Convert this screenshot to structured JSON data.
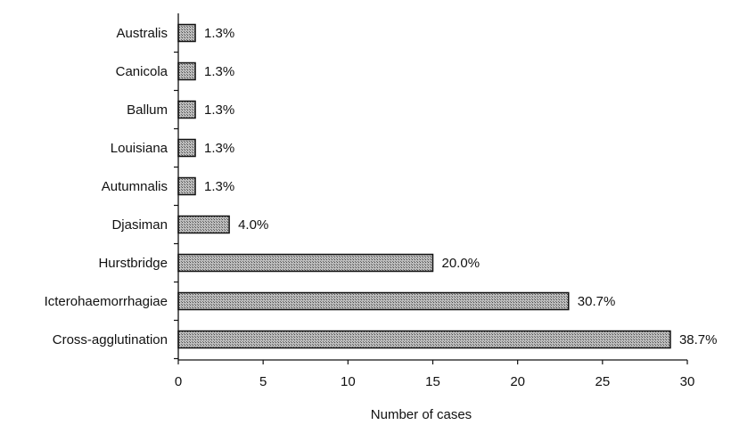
{
  "chart_data": {
    "type": "bar",
    "orientation": "horizontal",
    "categories": [
      "Australis",
      "Canicola",
      "Ballum",
      "Louisiana",
      "Autumnalis",
      "Djasiman",
      "Hurstbridge",
      "Icterohaemorrhagiae",
      "Cross-agglutination"
    ],
    "values": [
      1,
      1,
      1,
      1,
      1,
      3,
      15,
      23,
      29
    ],
    "value_labels": [
      "1.3%",
      "1.3%",
      "1.3%",
      "1.3%",
      "1.3%",
      "4.0%",
      "20.0%",
      "30.7%",
      "38.7%"
    ],
    "xlabel": "Number of cases",
    "ylabel": "",
    "xlim": [
      0,
      30
    ],
    "xticks": [
      0,
      5,
      10,
      15,
      20,
      25,
      30
    ],
    "grid": false,
    "colors": {
      "bar_fill": "#9a9a9a",
      "bar_stroke": "#111111",
      "axis": "#111111"
    }
  }
}
